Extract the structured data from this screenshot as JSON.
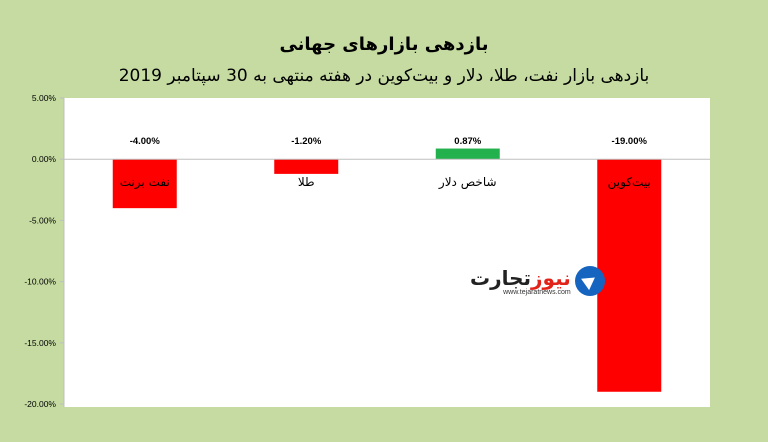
{
  "chart_data": {
    "type": "bar",
    "title": "بازدهی بازارهای جهانی",
    "subtitle": "بازدهی بازار نفت، طلا، دلار و بیت‌کوین در هفته منتهی به 30 سپتامبر 2019",
    "categories": [
      "نفت برنت",
      "طلا",
      "شاخص دلار",
      "بیت‌کوین"
    ],
    "values": [
      -4.0,
      -1.2,
      0.87,
      -19.0
    ],
    "data_labels": [
      "-4.00%",
      "-1.20%",
      "0.87%",
      "-19.00%"
    ],
    "y_ticks": [
      "5.00%",
      "0.00%",
      "-5.00%",
      "-10.00%",
      "-15.00%",
      "-20.00%"
    ],
    "y_tick_values": [
      5,
      0,
      -5,
      -10,
      -15,
      -20
    ],
    "ylim": [
      -20,
      5
    ],
    "grid": false,
    "legend": "none",
    "colors": {
      "negative": "#ff0000",
      "positive": "#22b14c",
      "background": "#c5dba1",
      "plot": "#ffffff"
    }
  },
  "watermark": {
    "brand_black": "تجارت",
    "brand_red": "نیوز",
    "url": "www.tejaratnews.com"
  }
}
